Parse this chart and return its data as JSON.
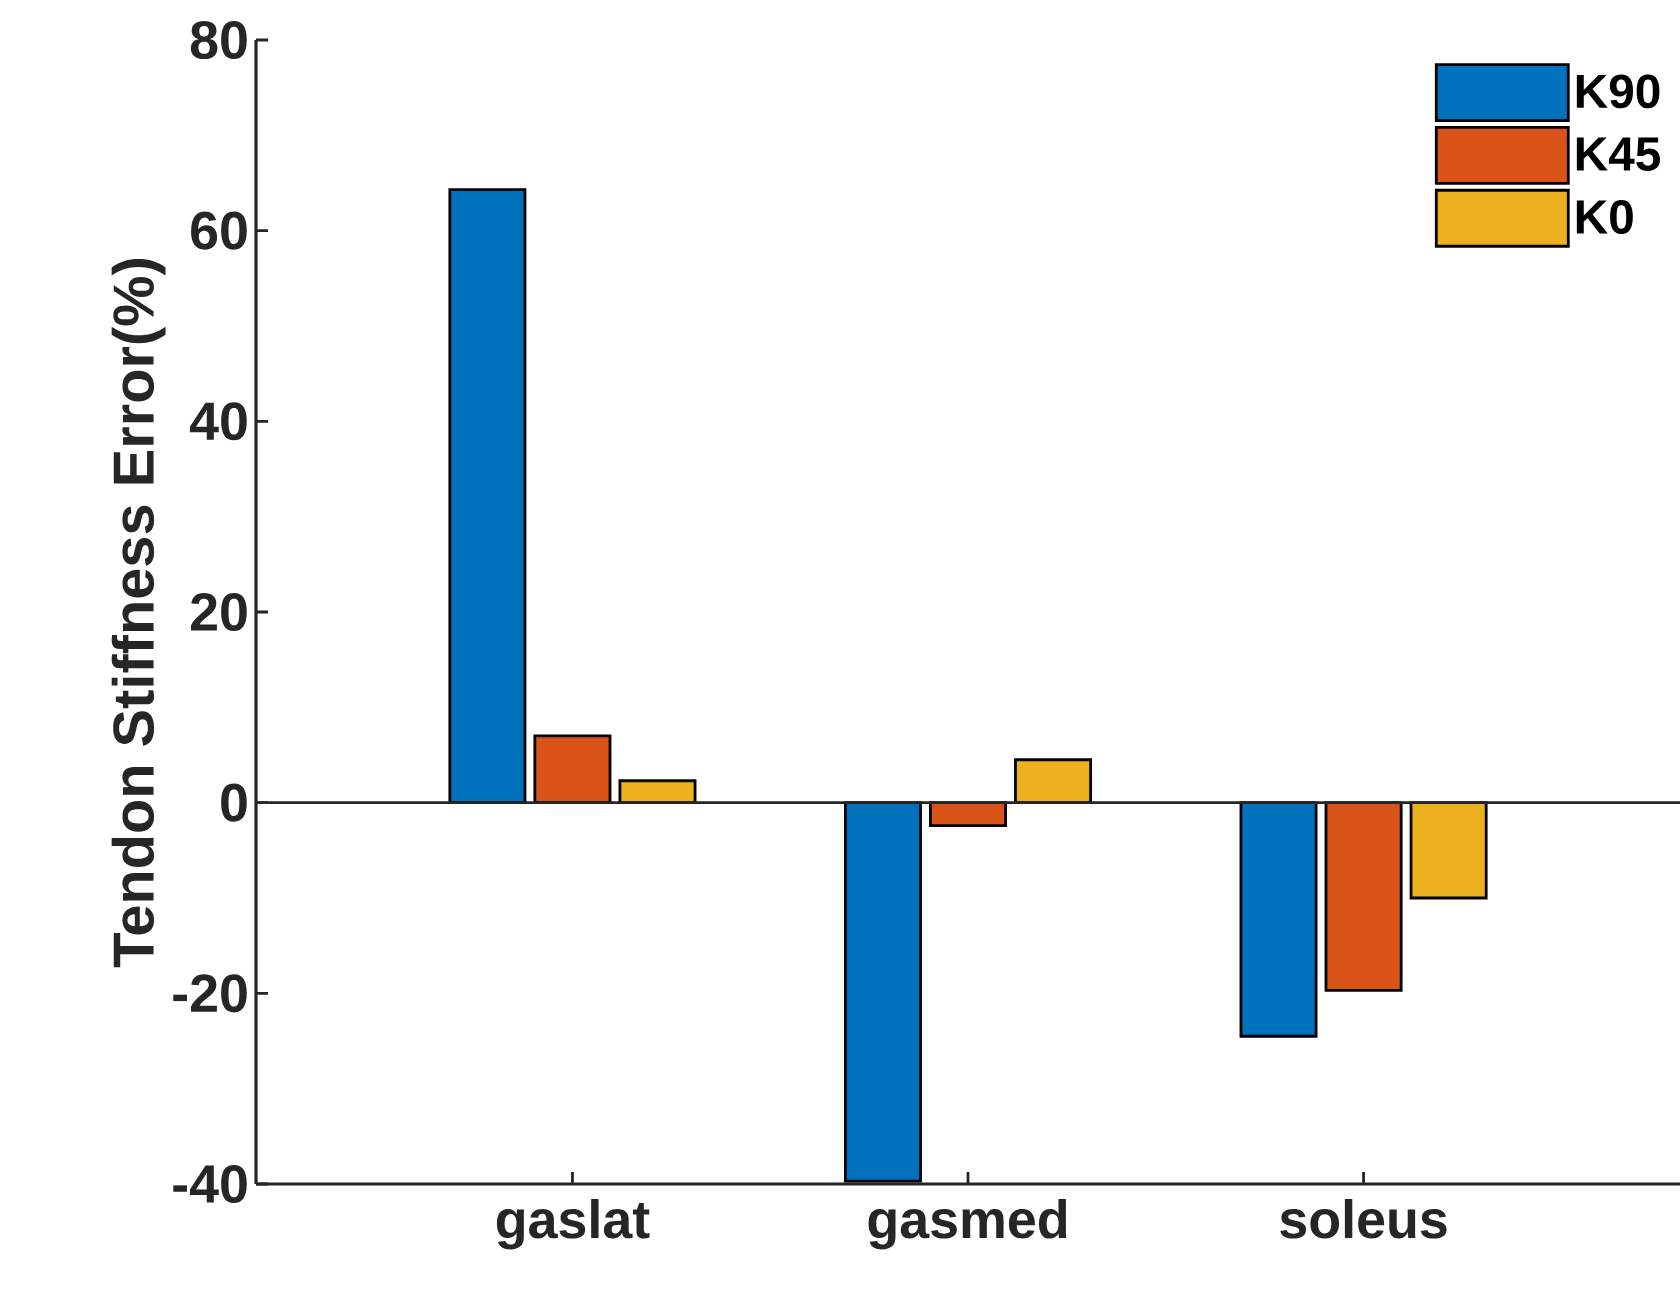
{
  "chart_data": {
    "type": "bar",
    "ylabel": "Tendon Stiffness Error(%)",
    "categories": [
      "gaslat",
      "gasmed",
      "soleus"
    ],
    "series": [
      {
        "name": "K90",
        "color": "#0072bd",
        "values": [
          64.3,
          -39.7,
          -24.5
        ]
      },
      {
        "name": "K45",
        "color": "#d95319",
        "values": [
          7.0,
          -2.4,
          -19.7
        ]
      },
      {
        "name": "K0",
        "color": "#edb120",
        "values": [
          2.3,
          4.5,
          -10.0
        ]
      }
    ],
    "ylim": [
      -40,
      80
    ],
    "yticks": [
      -40,
      -20,
      0,
      20,
      40,
      60,
      80
    ],
    "legend": "top right"
  }
}
